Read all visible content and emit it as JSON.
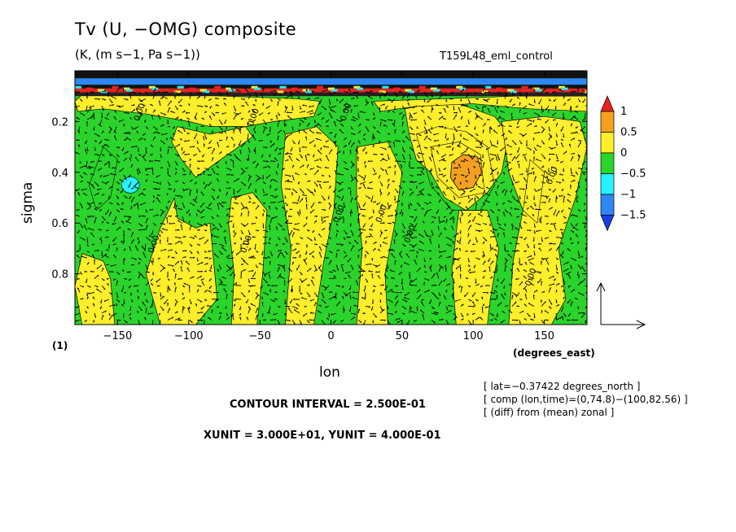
{
  "chart_data": {
    "type": "heatmap",
    "title": "Tv (U, −OMG) composite",
    "subtitle": "(K, (m s−1, Pa s−1))",
    "run_name": "T159L48_eml_control",
    "panel_label": "(1)",
    "xlabel": "lon",
    "xunit_label": "(degrees_east)",
    "ylabel": "sigma",
    "xlim": [
      -180,
      180
    ],
    "ylim": [
      1.0,
      0.0
    ],
    "x_ticks": [
      -150,
      -100,
      -50,
      0,
      50,
      100,
      150
    ],
    "y_ticks": [
      0.2,
      0.4,
      0.6,
      0.8
    ],
    "contour_interval_text": "CONTOUR INTERVAL = 2.500E-01",
    "vector_units_text": "XUNIT = 3.000E+01, YUNIT = 4.000E-01",
    "info_lines": [
      "[ lat=−0.37422 degrees_north ]",
      "[ comp (lon,time)=(0,74.8)−(100,82.56) ]",
      "[ (diff) from (mean) zonal ]"
    ],
    "contour_label": "0.00",
    "colorbar": {
      "labels": [
        "1",
        "0.5",
        "0",
        "−0.5",
        "−1",
        "−1.5"
      ],
      "levels": [
        1.0,
        0.5,
        0.0,
        -0.5,
        -1.0,
        -1.5
      ],
      "colors": [
        "#e8231f",
        "#f5a020",
        "#ffee2a",
        "#2bd42b",
        "#27f0ff",
        "#2f86f5",
        "#1a3fe6"
      ]
    },
    "field_regions": {
      "positive_0_to_0.5_longitudes": [
        [
          -135,
          -95
        ],
        [
          -65,
          -45
        ],
        [
          -25,
          5
        ],
        [
          20,
          40
        ],
        [
          55,
          85
        ],
        [
          120,
          150
        ]
      ],
      "positive_0.5_to_1_center": [
        95,
        0.4
      ],
      "negative_-1_to_-1.5_center": [
        -140,
        0.45
      ]
    }
  },
  "colors": {
    "green": "#2bd42b",
    "yellow": "#ffee2a",
    "orange": "#f5a020",
    "cyan": "#27f0ff",
    "blue": "#2f86f5",
    "red": "#e8231f",
    "background": "#ffffff"
  }
}
